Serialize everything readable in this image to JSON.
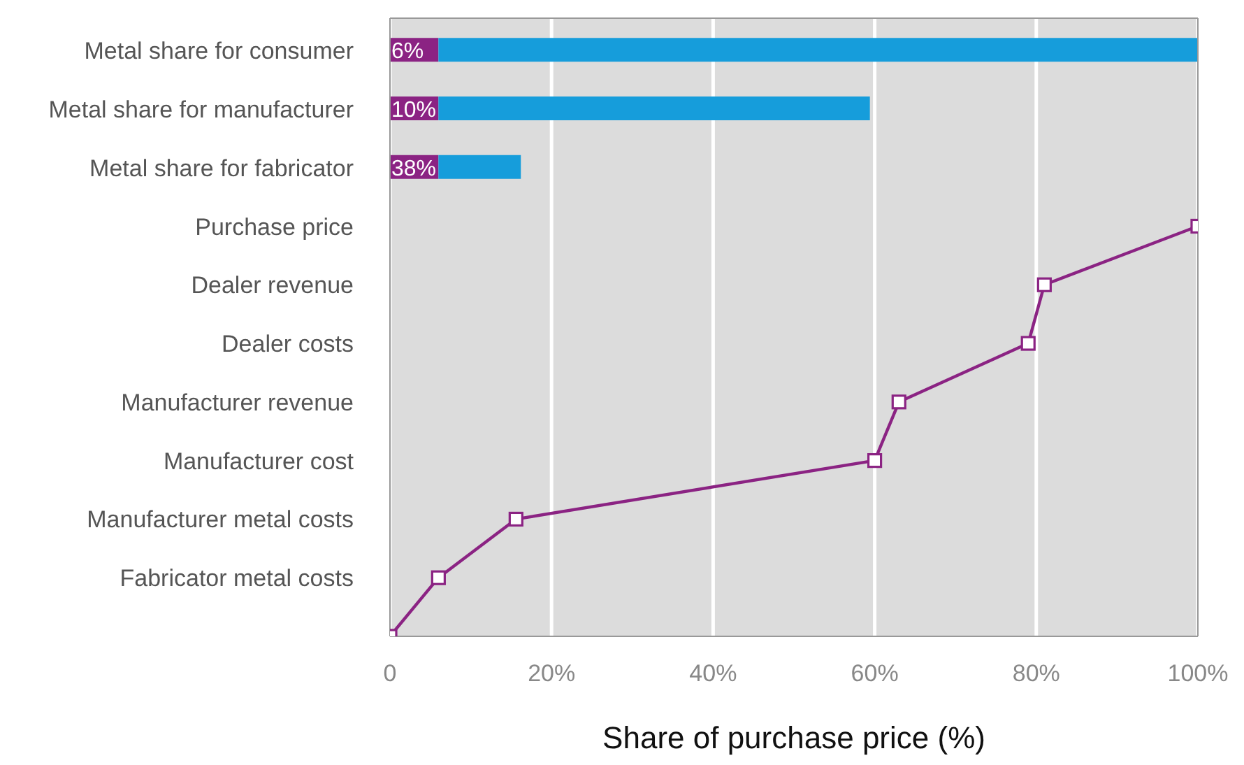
{
  "chart_data": {
    "type": "bar",
    "orientation": "horizontal",
    "stacked": true,
    "xlabel": "Share of purchase price (%)",
    "categories": [
      "Metal share for consumer",
      "Metal share for manufacturer",
      "Metal share for fabricator",
      "Purchase price",
      "Dealer revenue",
      "Dealer costs ",
      "Manufacturer revenue",
      "Manufacturer cost",
      "Manufacturer metal costs",
      "Fabricator metal costs",
      null
    ],
    "series": [
      {
        "color": "#8b2383",
        "values": [
          6,
          6,
          6,
          null,
          null,
          null,
          null,
          null,
          null,
          null,
          null
        ]
      },
      {
        "color": "#169ddb",
        "values": [
          94,
          53.4,
          10.2,
          null,
          null,
          null,
          null,
          null,
          null,
          null,
          null
        ]
      },
      {
        "type": "line",
        "color": "#8b2383",
        "values": [
          null,
          null,
          null,
          100,
          81,
          79,
          63,
          60,
          15.6,
          6,
          0
        ]
      }
    ],
    "xlim": [
      0,
      100
    ],
    "xticks": [
      0,
      {
        "value": 20,
        "label": "20%"
      },
      {
        "value": 40,
        "label": "40%"
      },
      {
        "value": 60,
        "label": "60%"
      },
      {
        "value": 80,
        "label": "80%"
      },
      {
        "value": 100,
        "label": "100%"
      }
    ],
    "annotations": [
      "6%",
      "10%",
      "38%"
    ],
    "grid": "x",
    "marker": "square"
  }
}
